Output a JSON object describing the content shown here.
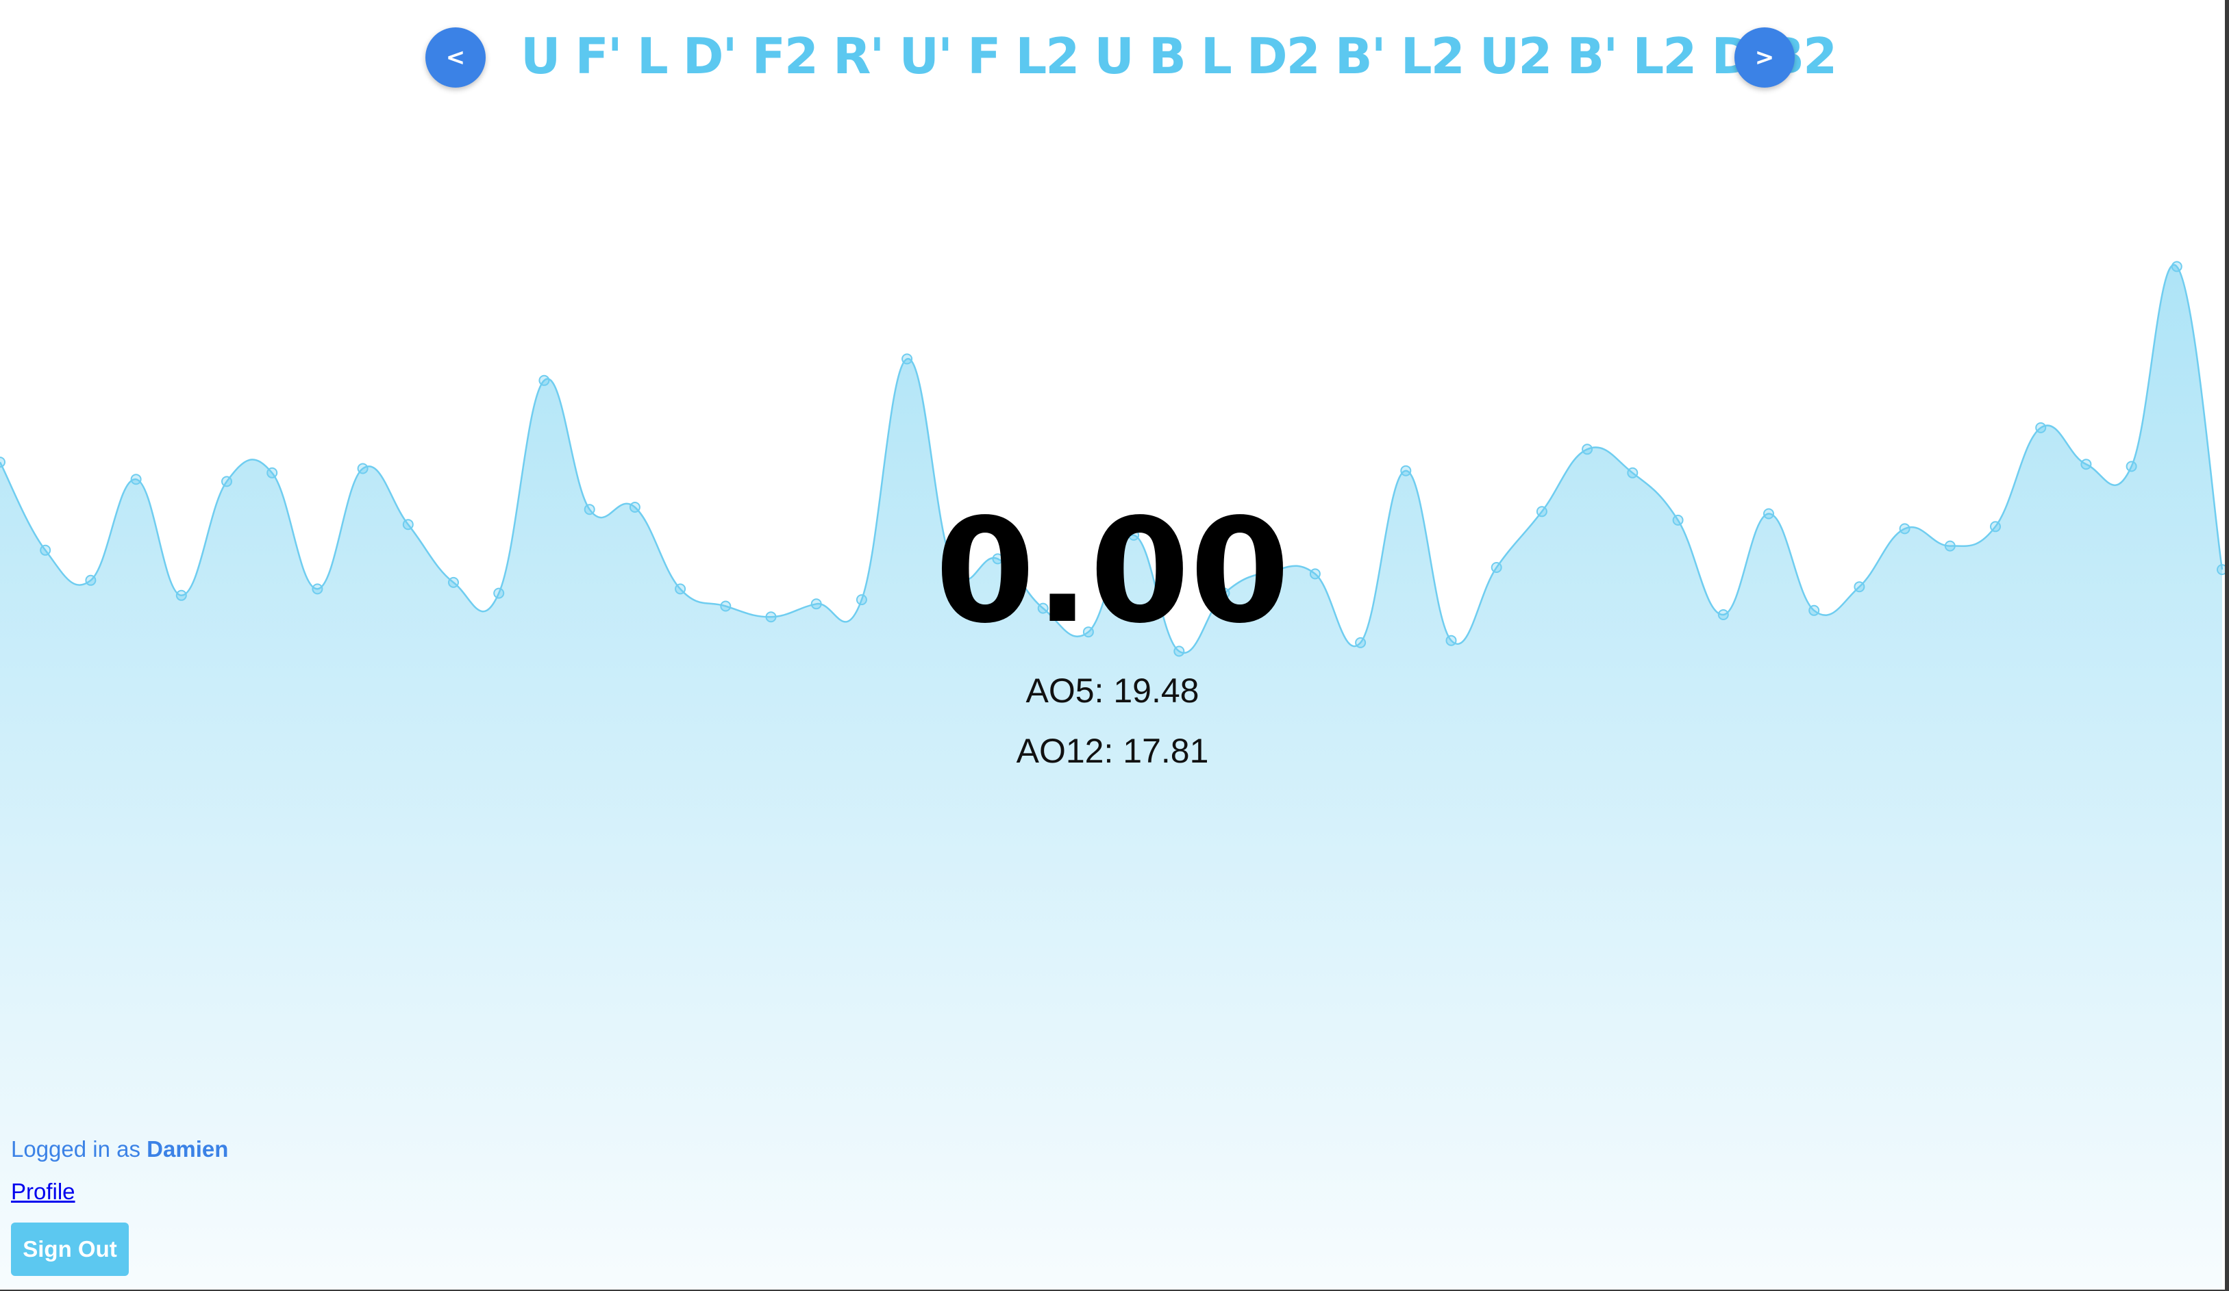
{
  "nav": {
    "prev_label": "<",
    "next_label": ">"
  },
  "scramble": "U F' L D' F2 R' U' F L2 U B L D2 B' L2 U2 B' L2 D B2",
  "timer": {
    "value": "0.00"
  },
  "stats": {
    "ao5_label": "AO5:",
    "ao5_value": "19.48",
    "ao12_label": "AO12:",
    "ao12_value": "17.81"
  },
  "user": {
    "logged_in_prefix": "Logged in as",
    "username": "Damien"
  },
  "links": {
    "profile": "Profile"
  },
  "buttons": {
    "sign_out": "Sign Out"
  },
  "colors": {
    "accent": "#3b82e6",
    "scramble": "#5cc8f0",
    "chart_line": "#6fcdf0",
    "chart_fill_top": "#aee4f7",
    "chart_fill_bottom": "#f7fcfe"
  },
  "chart_data": {
    "type": "area",
    "title": "",
    "xlabel": "",
    "ylabel": "",
    "ylim": [
      0,
      60
    ],
    "grid": false,
    "legend": "none",
    "x": [
      1,
      2,
      3,
      4,
      5,
      6,
      7,
      8,
      9,
      10,
      11,
      12,
      13,
      14,
      15,
      16,
      17,
      18,
      19,
      20,
      21,
      22,
      23,
      24,
      25,
      26,
      27,
      28,
      29,
      30,
      31,
      32,
      33,
      34,
      35,
      36,
      37,
      38,
      39,
      40,
      41,
      42,
      43,
      44,
      45,
      46,
      47,
      48,
      49,
      50
    ],
    "series": [
      {
        "name": "",
        "values": [
          38.5,
          34.4,
          33.0,
          37.7,
          32.3,
          37.6,
          38.0,
          32.6,
          38.2,
          35.6,
          32.9,
          32.4,
          42.3,
          36.3,
          36.4,
          32.6,
          31.8,
          31.3,
          31.9,
          32.1,
          43.3,
          33.7,
          34.0,
          31.7,
          30.6,
          35.1,
          29.7,
          32.4,
          33.4,
          33.3,
          30.1,
          38.1,
          30.2,
          33.6,
          36.2,
          39.1,
          38.0,
          35.8,
          31.4,
          36.1,
          31.6,
          32.7,
          35.4,
          34.6,
          35.5,
          40.1,
          38.4,
          38.3,
          47.6,
          33.5
        ]
      }
    ]
  }
}
